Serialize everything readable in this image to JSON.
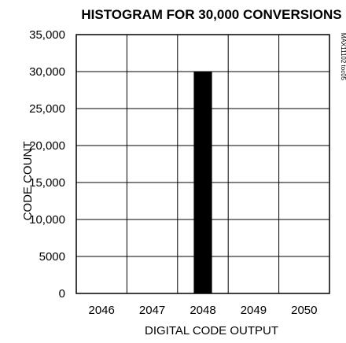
{
  "chart_data": {
    "type": "bar",
    "title": "HISTOGRAM FOR 30,000 CONVERSIONS",
    "xlabel": "DIGITAL CODE OUTPUT",
    "ylabel": "CODE COUNT",
    "categories": [
      "2046",
      "2047",
      "2048",
      "2049",
      "2050"
    ],
    "values": [
      0,
      0,
      30000,
      0,
      0
    ],
    "ylim": [
      0,
      35000
    ],
    "yticks": [
      0,
      5000,
      10000,
      15000,
      20000,
      25000,
      30000,
      35000
    ],
    "ytick_labels": [
      "0",
      "5000",
      "10,000",
      "15,000",
      "20,000",
      "25,000",
      "30,000",
      "35,000"
    ],
    "grid": true,
    "bar_color": "#000000"
  },
  "watermark": "MAX11102 toc05"
}
